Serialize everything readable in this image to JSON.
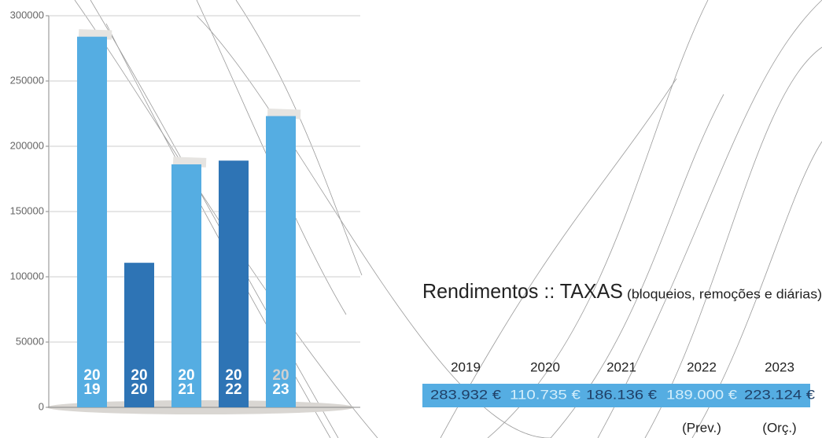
{
  "chart_data": {
    "type": "bar",
    "title": "Rendimentos :: TAXAS",
    "subtitle": "(bloqueios, remoções e diárias)",
    "categories": [
      "2019",
      "2020",
      "2021",
      "2022",
      "2023"
    ],
    "bar_year_labels": [
      [
        "20",
        "19"
      ],
      [
        "20",
        "20"
      ],
      [
        "20",
        "21"
      ],
      [
        "20",
        "22"
      ],
      [
        "20",
        "23"
      ]
    ],
    "values": [
      283932,
      110735,
      186136,
      189000,
      223124
    ],
    "value_labels": [
      "283.932 €",
      "110.735 €",
      "186.136 €",
      "189.000 €",
      "223.124 €"
    ],
    "notes": [
      null,
      null,
      null,
      "(Prev.)",
      "(Orç.)"
    ],
    "colors": [
      "#55ade2",
      "#2e74b5",
      "#55ade2",
      "#2e74b5",
      "#55ade2"
    ],
    "label_colors": [
      "#1f3f66",
      "#d3eefb",
      "#1f3f66",
      "#d3eefb",
      "#1f3f66"
    ],
    "table_color": "#55ade2",
    "ylim": [
      0,
      300000
    ],
    "yticks": [
      0,
      50000,
      100000,
      150000,
      200000,
      250000,
      300000
    ],
    "grid": true
  }
}
